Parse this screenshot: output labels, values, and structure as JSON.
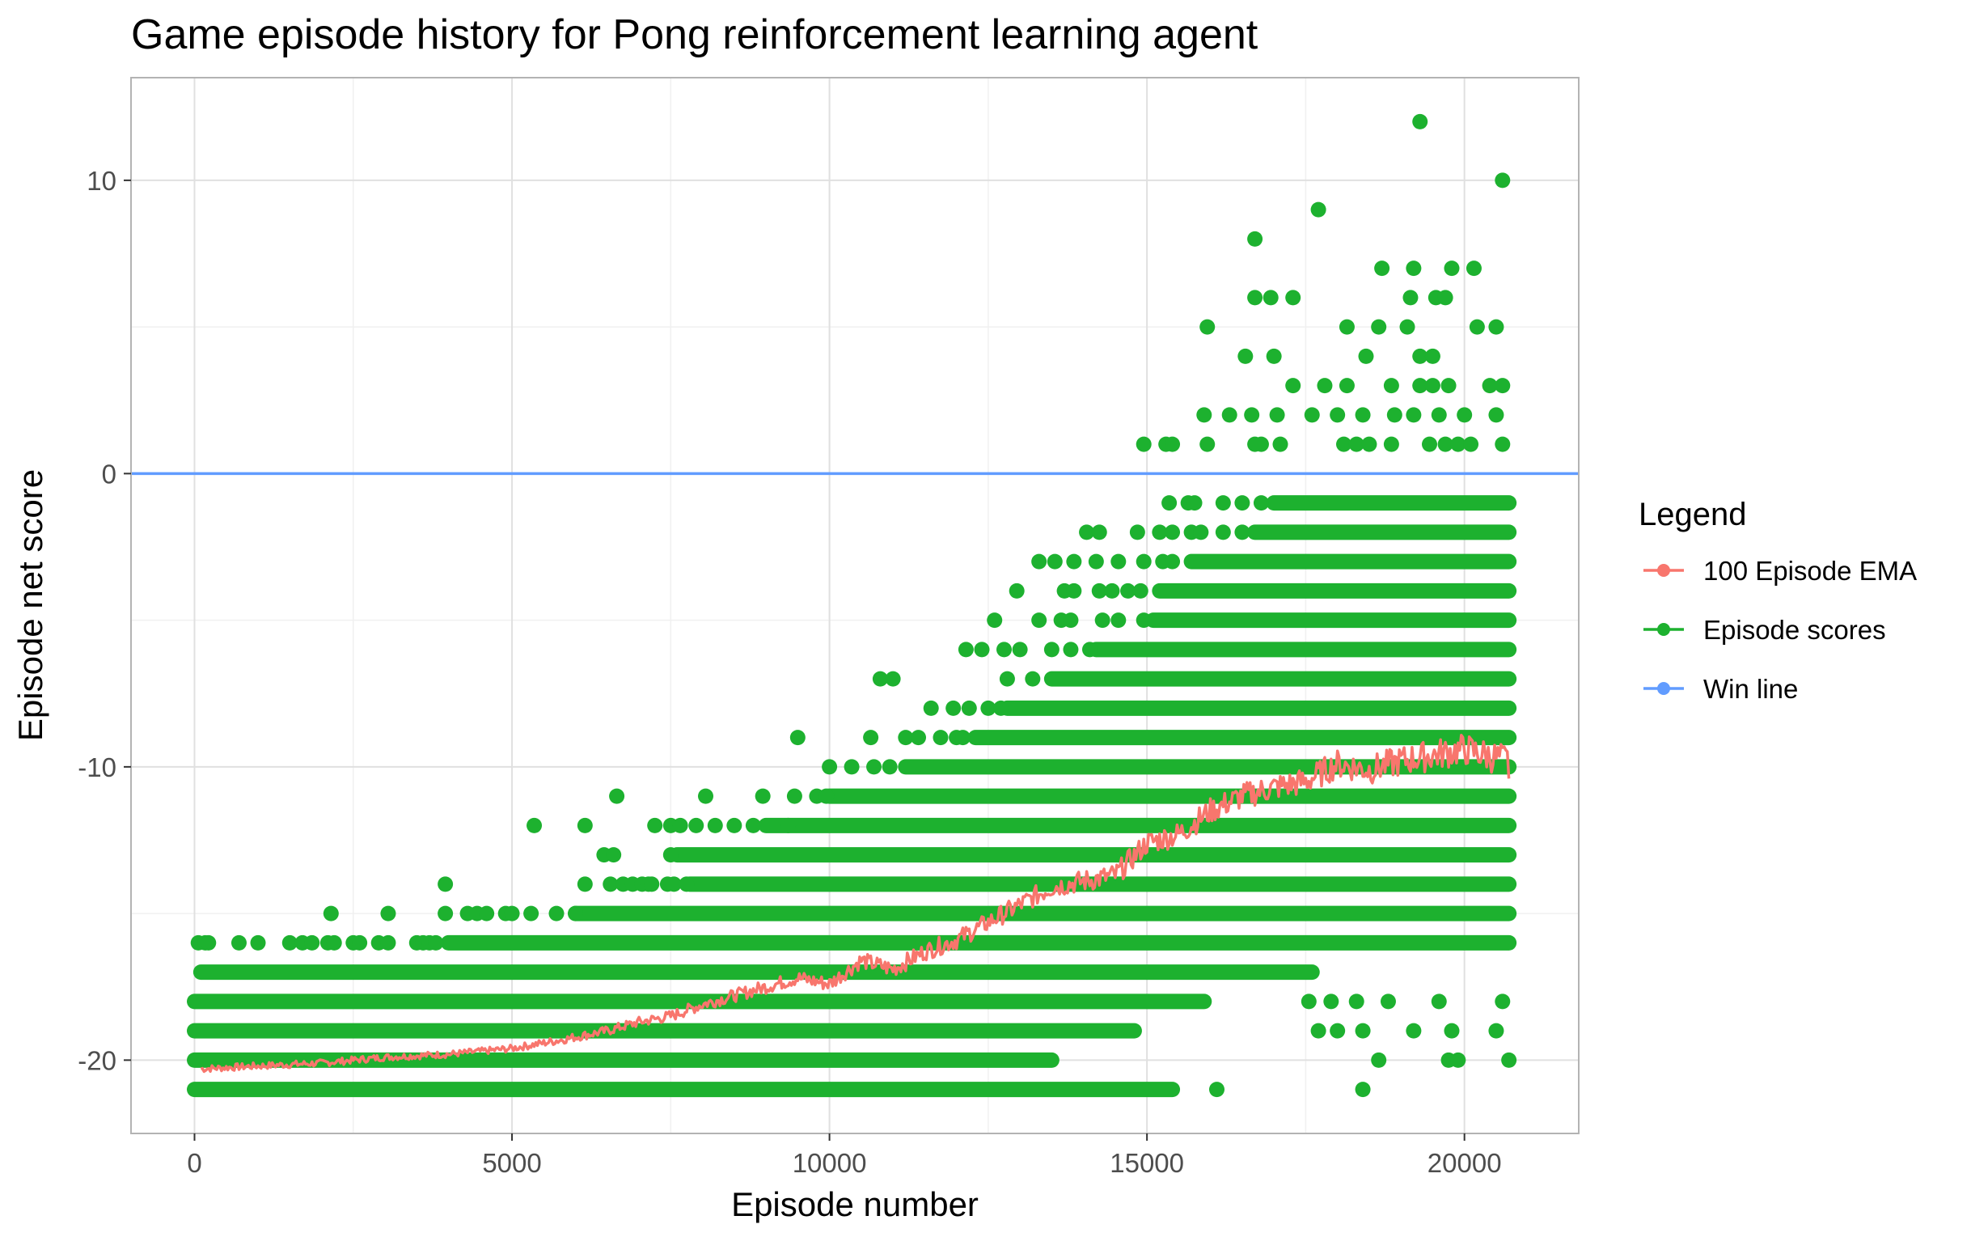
{
  "chart_data": {
    "type": "scatter",
    "title": "Game episode history for Pong reinforcement learning agent",
    "xlabel": "Episode number",
    "ylabel": "Episode net score",
    "xlim": [
      -1000,
      21800
    ],
    "ylim": [
      -22.5,
      13.5
    ],
    "x_ticks": [
      0,
      5000,
      10000,
      15000,
      20000
    ],
    "x_tick_labels": [
      "0",
      "5000",
      "10000",
      "15000",
      "20000"
    ],
    "y_ticks": [
      -20,
      -10,
      0,
      10
    ],
    "y_tick_labels": [
      "-20",
      "-10",
      "0",
      "10"
    ],
    "grid": true,
    "legend": {
      "title": "Legend",
      "placement": "right",
      "entries": [
        {
          "label": "100 Episode EMA",
          "color": "#F8766D"
        },
        {
          "label": "Episode scores",
          "color": "#1DB12F"
        },
        {
          "label": "Win line",
          "color": "#619CFF"
        }
      ]
    },
    "series": [
      {
        "name": "Episode scores",
        "kind": "points",
        "color": "#1DB12F",
        "episode_range": [
          0,
          20700
        ],
        "score_bands": [
          {
            "score": -21,
            "x_range": [
              0,
              15400
            ]
          },
          {
            "score": -20,
            "x_range": [
              0,
              13500
            ]
          },
          {
            "score": -19,
            "x_range": [
              0,
              14800
            ]
          },
          {
            "score": -18,
            "x_range": [
              0,
              15900
            ]
          },
          {
            "score": -17,
            "x_range": [
              100,
              17600
            ]
          },
          {
            "score": -16,
            "x_range": [
              4000,
              20700
            ]
          },
          {
            "score": -15,
            "x_range": [
              6000,
              20700
            ]
          },
          {
            "score": -14,
            "x_range": [
              7800,
              20700
            ]
          },
          {
            "score": -13,
            "x_range": [
              7600,
              20700
            ]
          },
          {
            "score": -12,
            "x_range": [
              9000,
              20700
            ]
          },
          {
            "score": -11,
            "x_range": [
              10000,
              20700
            ]
          },
          {
            "score": -10,
            "x_range": [
              11200,
              20700
            ]
          },
          {
            "score": -9,
            "x_range": [
              12300,
              20700
            ]
          },
          {
            "score": -8,
            "x_range": [
              12800,
              20700
            ]
          },
          {
            "score": -7,
            "x_range": [
              13500,
              20700
            ]
          },
          {
            "score": -6,
            "x_range": [
              14200,
              20700
            ]
          },
          {
            "score": -5,
            "x_range": [
              15100,
              20700
            ]
          },
          {
            "score": -4,
            "x_range": [
              15200,
              20700
            ]
          },
          {
            "score": -3,
            "x_range": [
              15700,
              20700
            ]
          },
          {
            "score": -2,
            "x_range": [
              16700,
              20700
            ]
          },
          {
            "score": -1,
            "x_range": [
              17000,
              20700
            ]
          }
        ],
        "scattered_points": [
          [
            60,
            -16
          ],
          [
            170,
            -16
          ],
          [
            220,
            -16
          ],
          [
            700,
            -16
          ],
          [
            1000,
            -16
          ],
          [
            1500,
            -16
          ],
          [
            1700,
            -16
          ],
          [
            1850,
            -16
          ],
          [
            2100,
            -16
          ],
          [
            2200,
            -16
          ],
          [
            2500,
            -16
          ],
          [
            2600,
            -16
          ],
          [
            2900,
            -16
          ],
          [
            3050,
            -16
          ],
          [
            3500,
            -16
          ],
          [
            3600,
            -16
          ],
          [
            3700,
            -16
          ],
          [
            3800,
            -16
          ],
          [
            2150,
            -15
          ],
          [
            3050,
            -15
          ],
          [
            3950,
            -15
          ],
          [
            4300,
            -15
          ],
          [
            4450,
            -15
          ],
          [
            4600,
            -15
          ],
          [
            4900,
            -15
          ],
          [
            5000,
            -15
          ],
          [
            5300,
            -15
          ],
          [
            5700,
            -15
          ],
          [
            6000,
            -15
          ],
          [
            3950,
            -14
          ],
          [
            6150,
            -14
          ],
          [
            6550,
            -14
          ],
          [
            6750,
            -14
          ],
          [
            6900,
            -14
          ],
          [
            7050,
            -14
          ],
          [
            7150,
            -14
          ],
          [
            7200,
            -14
          ],
          [
            7450,
            -14
          ],
          [
            7550,
            -14
          ],
          [
            7750,
            -14
          ],
          [
            6450,
            -13
          ],
          [
            6600,
            -13
          ],
          [
            7500,
            -13
          ],
          [
            5350,
            -12
          ],
          [
            6150,
            -12
          ],
          [
            7250,
            -12
          ],
          [
            7500,
            -12
          ],
          [
            7650,
            -12
          ],
          [
            7900,
            -12
          ],
          [
            8200,
            -12
          ],
          [
            8500,
            -12
          ],
          [
            8800,
            -12
          ],
          [
            9350,
            -12
          ],
          [
            6650,
            -11
          ],
          [
            8050,
            -11
          ],
          [
            8950,
            -11
          ],
          [
            9450,
            -11
          ],
          [
            9800,
            -11
          ],
          [
            9950,
            -11
          ],
          [
            10000,
            -10
          ],
          [
            10350,
            -10
          ],
          [
            10700,
            -10
          ],
          [
            10950,
            -10
          ],
          [
            9500,
            -9
          ],
          [
            10650,
            -9
          ],
          [
            11200,
            -9
          ],
          [
            11400,
            -9
          ],
          [
            11750,
            -9
          ],
          [
            12000,
            -9
          ],
          [
            12100,
            -9
          ],
          [
            11600,
            -8
          ],
          [
            11950,
            -8
          ],
          [
            12200,
            -8
          ],
          [
            12500,
            -8
          ],
          [
            12700,
            -8
          ],
          [
            10800,
            -7
          ],
          [
            11000,
            -7
          ],
          [
            12800,
            -7
          ],
          [
            13200,
            -7
          ],
          [
            12150,
            -6
          ],
          [
            12400,
            -6
          ],
          [
            12750,
            -6
          ],
          [
            13000,
            -6
          ],
          [
            13500,
            -6
          ],
          [
            13800,
            -6
          ],
          [
            14100,
            -6
          ],
          [
            12600,
            -5
          ],
          [
            13300,
            -5
          ],
          [
            13650,
            -5
          ],
          [
            13800,
            -5
          ],
          [
            14300,
            -5
          ],
          [
            14550,
            -5
          ],
          [
            14950,
            -5
          ],
          [
            12950,
            -4
          ],
          [
            13700,
            -4
          ],
          [
            13850,
            -4
          ],
          [
            14250,
            -4
          ],
          [
            14450,
            -4
          ],
          [
            14700,
            -4
          ],
          [
            14900,
            -4
          ],
          [
            13300,
            -3
          ],
          [
            13550,
            -3
          ],
          [
            13850,
            -3
          ],
          [
            14200,
            -3
          ],
          [
            14550,
            -3
          ],
          [
            14950,
            -3
          ],
          [
            15250,
            -3
          ],
          [
            15400,
            -3
          ],
          [
            14050,
            -2
          ],
          [
            14250,
            -2
          ],
          [
            14850,
            -2
          ],
          [
            15200,
            -2
          ],
          [
            15400,
            -2
          ],
          [
            15700,
            -2
          ],
          [
            15850,
            -2
          ],
          [
            16200,
            -2
          ],
          [
            16500,
            -2
          ],
          [
            15350,
            -1
          ],
          [
            15650,
            -1
          ],
          [
            15750,
            -1
          ],
          [
            16200,
            -1
          ],
          [
            16500,
            -1
          ],
          [
            16800,
            -1
          ],
          [
            17550,
            -18
          ],
          [
            17900,
            -18
          ],
          [
            18300,
            -18
          ],
          [
            18800,
            -18
          ],
          [
            19600,
            -18
          ],
          [
            20600,
            -18
          ],
          [
            17700,
            -19
          ],
          [
            18000,
            -19
          ],
          [
            18400,
            -19
          ],
          [
            19200,
            -19
          ],
          [
            19800,
            -19
          ],
          [
            20500,
            -19
          ],
          [
            18650,
            -20
          ],
          [
            19750,
            -20
          ],
          [
            19900,
            -20
          ],
          [
            20700,
            -20
          ],
          [
            18400,
            -21
          ],
          [
            16100,
            -21
          ],
          [
            14950,
            1
          ],
          [
            15300,
            1
          ],
          [
            15400,
            1
          ],
          [
            15950,
            1
          ],
          [
            16700,
            1
          ],
          [
            16800,
            1
          ],
          [
            17100,
            1
          ],
          [
            18100,
            1
          ],
          [
            18300,
            1
          ],
          [
            18500,
            1
          ],
          [
            18850,
            1
          ],
          [
            19450,
            1
          ],
          [
            19700,
            1
          ],
          [
            19900,
            1
          ],
          [
            20100,
            1
          ],
          [
            20600,
            1
          ],
          [
            15900,
            2
          ],
          [
            16300,
            2
          ],
          [
            16650,
            2
          ],
          [
            17050,
            2
          ],
          [
            17600,
            2
          ],
          [
            18000,
            2
          ],
          [
            18400,
            2
          ],
          [
            18900,
            2
          ],
          [
            19200,
            2
          ],
          [
            19600,
            2
          ],
          [
            20000,
            2
          ],
          [
            20500,
            2
          ],
          [
            17300,
            3
          ],
          [
            17800,
            3
          ],
          [
            18150,
            3
          ],
          [
            18850,
            3
          ],
          [
            19300,
            3
          ],
          [
            19500,
            3
          ],
          [
            19750,
            3
          ],
          [
            20400,
            3
          ],
          [
            20600,
            3
          ],
          [
            16550,
            4
          ],
          [
            17000,
            4
          ],
          [
            18450,
            4
          ],
          [
            19300,
            4
          ],
          [
            19500,
            4
          ],
          [
            15950,
            5
          ],
          [
            18150,
            5
          ],
          [
            18650,
            5
          ],
          [
            19100,
            5
          ],
          [
            20200,
            5
          ],
          [
            20500,
            5
          ],
          [
            16700,
            6
          ],
          [
            16950,
            6
          ],
          [
            17300,
            6
          ],
          [
            19150,
            6
          ],
          [
            19550,
            6
          ],
          [
            19700,
            6
          ],
          [
            18700,
            7
          ],
          [
            19200,
            7
          ],
          [
            19800,
            7
          ],
          [
            20150,
            7
          ],
          [
            16700,
            8
          ],
          [
            17700,
            9
          ],
          [
            20600,
            10
          ],
          [
            19300,
            12
          ]
        ]
      },
      {
        "name": "100 Episode EMA",
        "kind": "line",
        "color": "#F8766D",
        "x": [
          100,
          1000,
          2000,
          3000,
          4000,
          5000,
          5800,
          6500,
          7000,
          7500,
          8000,
          8500,
          9000,
          9500,
          10000,
          10500,
          11000,
          11500,
          12000,
          12500,
          13000,
          13500,
          14000,
          14500,
          15000,
          15500,
          16000,
          16500,
          17000,
          17500,
          18000,
          18500,
          19000,
          19500,
          20000,
          20700
        ],
        "y": [
          -20.3,
          -20.2,
          -20.1,
          -19.9,
          -19.8,
          -19.6,
          -19.3,
          -19.0,
          -18.7,
          -18.5,
          -18.1,
          -17.8,
          -17.5,
          -17.2,
          -17.4,
          -16.6,
          -16.9,
          -16.3,
          -15.9,
          -15.3,
          -14.7,
          -14.1,
          -13.9,
          -13.7,
          -12.6,
          -12.3,
          -11.5,
          -11.0,
          -10.7,
          -10.5,
          -9.9,
          -10.1,
          -9.8,
          -9.6,
          -9.4,
          -9.8
        ]
      },
      {
        "name": "Win line",
        "kind": "hline",
        "color": "#619CFF",
        "y": 0
      }
    ]
  }
}
